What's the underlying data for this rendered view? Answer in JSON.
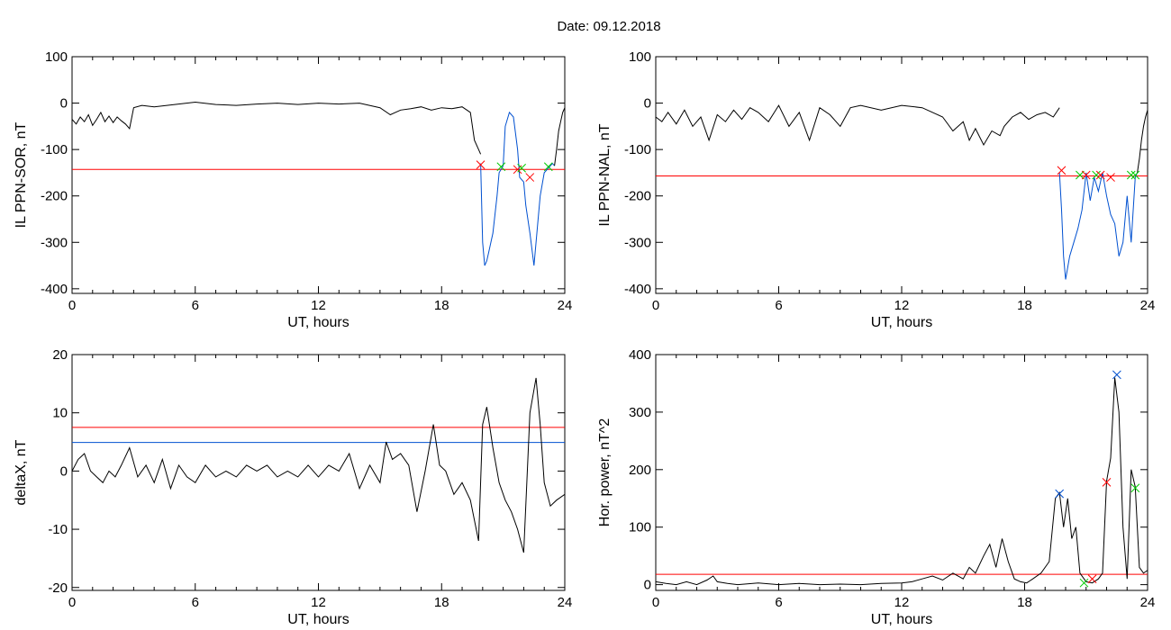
{
  "title": "Date:  09.12.2018",
  "chart_data": [
    {
      "type": "line",
      "ylabel": "IL PPN-SOR, nT",
      "xlabel": "UT, hours",
      "xlim": [
        0,
        24
      ],
      "ylim": [
        -410,
        100
      ],
      "xticks": [
        "0",
        "6",
        "12",
        "18",
        "24"
      ],
      "yticks": [
        100,
        0,
        -100,
        -200,
        -300,
        -400
      ],
      "ytick_labels": [
        "100",
        "0",
        "-100",
        "-200",
        "-300",
        "-400"
      ],
      "series": [
        {
          "color": "#000000",
          "x": [
            0,
            0.2,
            0.4,
            0.6,
            0.8,
            1,
            1.2,
            1.4,
            1.6,
            1.8,
            2,
            2.2,
            2.4,
            2.6,
            2.8,
            3,
            3.4,
            4,
            5,
            6,
            7,
            8,
            9,
            10,
            11,
            12,
            13,
            14,
            15,
            15.5,
            16,
            16.5,
            17,
            17.5,
            18,
            18.5,
            19,
            19.4,
            19.6,
            19.8,
            19.9
          ],
          "y": [
            -35,
            -45,
            -30,
            -40,
            -25,
            -48,
            -35,
            -20,
            -40,
            -28,
            -42,
            -30,
            -38,
            -45,
            -55,
            -10,
            -5,
            -8,
            -3,
            2,
            -3,
            -5,
            -2,
            0,
            -3,
            0,
            -2,
            0,
            -10,
            -25,
            -15,
            -12,
            -8,
            -15,
            -10,
            -12,
            -8,
            -20,
            -80,
            -100,
            -110
          ]
        },
        {
          "color": "#0050d0",
          "x": [
            19.9,
            20,
            20.1,
            20.2,
            20.3,
            20.5,
            20.7,
            20.8,
            21,
            21.1,
            21.3,
            21.5,
            21.7,
            21.8,
            22,
            22.1,
            22.3,
            22.5,
            22.6,
            22.8,
            23,
            23.2,
            23.4,
            23.5
          ],
          "y": [
            -130,
            -300,
            -350,
            -340,
            -320,
            -280,
            -200,
            -150,
            -135,
            -50,
            -20,
            -30,
            -100,
            -160,
            -170,
            -220,
            -280,
            -350,
            -300,
            -200,
            -150,
            -140,
            -130,
            -135
          ]
        },
        {
          "color": "#000000",
          "x": [
            23.5,
            23.6,
            23.7,
            23.8,
            23.9,
            24
          ],
          "y": [
            -135,
            -100,
            -60,
            -40,
            -20,
            -10
          ]
        }
      ],
      "threshold_lines": [
        {
          "y": -143,
          "color": "#ff0000"
        }
      ],
      "markers": [
        {
          "x": 19.9,
          "y": -133,
          "color": "#ff0000"
        },
        {
          "x": 20.9,
          "y": -137,
          "color": "#00cc00"
        },
        {
          "x": 21.7,
          "y": -143,
          "color": "#ff0000"
        },
        {
          "x": 21.9,
          "y": -140,
          "color": "#00cc00"
        },
        {
          "x": 22.3,
          "y": -160,
          "color": "#ff0000"
        },
        {
          "x": 23.2,
          "y": -137,
          "color": "#00cc00"
        }
      ]
    },
    {
      "type": "line",
      "ylabel": "IL PPN-NAL, nT",
      "xlabel": "UT, hours",
      "xlim": [
        0,
        24
      ],
      "ylim": [
        -410,
        100
      ],
      "xticks": [
        "0",
        "6",
        "12",
        "18",
        "24"
      ],
      "yticks": [
        100,
        0,
        -100,
        -200,
        -300,
        -400
      ],
      "ytick_labels": [
        "100",
        "0",
        "-100",
        "-200",
        "-300",
        "-400"
      ],
      "series": [
        {
          "color": "#000000",
          "x": [
            0,
            0.3,
            0.6,
            1,
            1.4,
            1.8,
            2.2,
            2.6,
            3,
            3.4,
            3.8,
            4.2,
            4.6,
            5,
            5.5,
            6,
            6.5,
            7,
            7.5,
            8,
            8.5,
            9,
            9.5,
            10,
            11,
            12,
            13,
            14,
            14.5,
            15,
            15.3,
            15.6,
            16,
            16.4,
            16.8,
            17,
            17.4,
            17.8,
            18.2,
            18.6,
            19,
            19.4,
            19.7
          ],
          "y": [
            -30,
            -40,
            -20,
            -45,
            -15,
            -50,
            -30,
            -80,
            -25,
            -40,
            -15,
            -35,
            -10,
            -20,
            -40,
            -5,
            -50,
            -20,
            -80,
            -10,
            -25,
            -50,
            -10,
            -5,
            -15,
            -5,
            -10,
            -30,
            -60,
            -40,
            -80,
            -55,
            -90,
            -60,
            -70,
            -50,
            -30,
            -20,
            -35,
            -25,
            -20,
            -30,
            -10
          ]
        },
        {
          "color": "#0050d0",
          "x": [
            19.7,
            19.8,
            19.9,
            20,
            20.2,
            20.4,
            20.6,
            20.8,
            21,
            21.2,
            21.4,
            21.6,
            21.8,
            22,
            22.2,
            22.4,
            22.6,
            22.8,
            23,
            23.2,
            23.4,
            23.5
          ],
          "y": [
            -150,
            -230,
            -330,
            -380,
            -330,
            -300,
            -270,
            -230,
            -150,
            -210,
            -160,
            -190,
            -150,
            -200,
            -240,
            -260,
            -330,
            -300,
            -200,
            -300,
            -160,
            -150
          ]
        },
        {
          "color": "#000000",
          "x": [
            23.5,
            23.6,
            23.7,
            23.8,
            23.9,
            24
          ],
          "y": [
            -150,
            -120,
            -80,
            -50,
            -30,
            -15
          ]
        }
      ],
      "threshold_lines": [
        {
          "y": -157,
          "color": "#ff0000"
        }
      ],
      "markers": [
        {
          "x": 19.8,
          "y": -145,
          "color": "#ff0000"
        },
        {
          "x": 20.7,
          "y": -155,
          "color": "#00cc00"
        },
        {
          "x": 21.0,
          "y": -155,
          "color": "#ff0000"
        },
        {
          "x": 21.5,
          "y": -155,
          "color": "#00cc00"
        },
        {
          "x": 21.7,
          "y": -155,
          "color": "#ff0000"
        },
        {
          "x": 22.2,
          "y": -160,
          "color": "#ff0000"
        },
        {
          "x": 23.2,
          "y": -155,
          "color": "#00cc00"
        },
        {
          "x": 23.4,
          "y": -155,
          "color": "#00cc00"
        }
      ]
    },
    {
      "type": "line",
      "ylabel": "deltaX, nT",
      "xlabel": "UT, hours",
      "xlim": [
        0,
        24
      ],
      "ylim": [
        -20.5,
        20
      ],
      "xticks": [
        "0",
        "6",
        "12",
        "18",
        "24"
      ],
      "yticks": [
        20,
        10,
        0,
        -10,
        -20
      ],
      "ytick_labels": [
        "20",
        "10",
        "0",
        "-10",
        "-20"
      ],
      "series": [
        {
          "color": "#000000",
          "x": [
            0,
            0.3,
            0.6,
            0.9,
            1.2,
            1.5,
            1.8,
            2.1,
            2.4,
            2.8,
            3.2,
            3.6,
            4,
            4.4,
            4.8,
            5.2,
            5.6,
            6,
            6.5,
            7,
            7.5,
            8,
            8.5,
            9,
            9.5,
            10,
            10.5,
            11,
            11.5,
            12,
            12.5,
            13,
            13.5,
            14,
            14.5,
            15,
            15.3,
            15.6,
            16,
            16.4,
            16.8,
            17.2,
            17.6,
            17.9,
            18.2,
            18.6,
            19,
            19.4,
            19.8,
            20,
            20.2,
            20.5,
            20.8,
            21.1,
            21.4,
            21.7,
            22,
            22.3,
            22.6,
            22.8,
            23,
            23.3,
            23.6,
            24
          ],
          "y": [
            0,
            2,
            3,
            0,
            -1,
            -2,
            0,
            -1,
            1,
            4,
            -1,
            1,
            -2,
            2,
            -3,
            1,
            -1,
            -2,
            1,
            -1,
            0,
            -1,
            1,
            0,
            1,
            -1,
            0,
            -1,
            1,
            -1,
            1,
            0,
            3,
            -3,
            1,
            -2,
            5,
            2,
            3,
            1,
            -7,
            0,
            8,
            1,
            0,
            -4,
            -2,
            -5,
            -12,
            8,
            11,
            4,
            -2,
            -5,
            -7,
            -10,
            -14,
            10,
            16,
            8,
            -2,
            -6,
            -5,
            -4
          ]
        }
      ],
      "threshold_lines": [
        {
          "y": 7.5,
          "color": "#ff0000"
        },
        {
          "y": 4.9,
          "color": "#0050d0"
        }
      ],
      "markers": []
    },
    {
      "type": "line",
      "ylabel": "Hor. power, nT^2",
      "xlabel": "UT, hours",
      "xlim": [
        0,
        24
      ],
      "ylim": [
        -10,
        400
      ],
      "xticks": [
        "0",
        "6",
        "12",
        "18",
        "24"
      ],
      "yticks": [
        400,
        300,
        200,
        100,
        0
      ],
      "ytick_labels": [
        "400",
        "300",
        "200",
        "100",
        "0"
      ],
      "series": [
        {
          "color": "#000000",
          "x": [
            0,
            0.5,
            1,
            1.5,
            2,
            2.5,
            2.8,
            3,
            3.5,
            4,
            5,
            6,
            7,
            8,
            9,
            10,
            11,
            12,
            12.5,
            13,
            13.5,
            14,
            14.5,
            15,
            15.3,
            15.6,
            16,
            16.3,
            16.6,
            16.9,
            17.2,
            17.5,
            17.8,
            18.1,
            18.4,
            18.8,
            19.2,
            19.5,
            19.7,
            19.9,
            20.1,
            20.3,
            20.5,
            20.7,
            21,
            21.3,
            21.6,
            21.8,
            22,
            22.2,
            22.4,
            22.6,
            22.8,
            23,
            23.2,
            23.4,
            23.6,
            23.8,
            24
          ],
          "y": [
            5,
            2,
            0,
            5,
            0,
            8,
            15,
            5,
            2,
            0,
            3,
            0,
            2,
            0,
            1,
            0,
            2,
            3,
            5,
            10,
            15,
            8,
            20,
            10,
            30,
            20,
            50,
            70,
            30,
            80,
            40,
            10,
            5,
            3,
            10,
            20,
            40,
            150,
            160,
            100,
            150,
            80,
            100,
            20,
            5,
            3,
            10,
            20,
            180,
            220,
            360,
            300,
            100,
            10,
            200,
            170,
            30,
            20,
            25
          ]
        }
      ],
      "threshold_lines": [
        {
          "y": 18,
          "color": "#ff0000"
        }
      ],
      "markers": [
        {
          "x": 19.7,
          "y": 158,
          "color": "#0050d0"
        },
        {
          "x": 20.9,
          "y": 3,
          "color": "#00cc00"
        },
        {
          "x": 21.3,
          "y": 10,
          "color": "#ff0000"
        },
        {
          "x": 22.0,
          "y": 178,
          "color": "#ff0000"
        },
        {
          "x": 22.5,
          "y": 365,
          "color": "#0050d0"
        },
        {
          "x": 23.4,
          "y": 168,
          "color": "#00cc00"
        }
      ]
    }
  ]
}
